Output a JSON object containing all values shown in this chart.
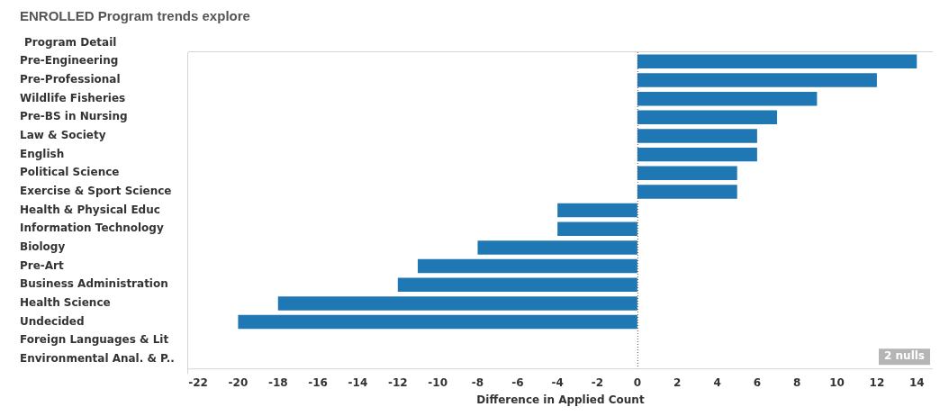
{
  "chart_data": {
    "type": "bar",
    "orientation": "horizontal",
    "title": "ENROLLED Program trends explore",
    "ylabel": "Program Detail",
    "xlabel": "Difference in Applied Count",
    "categories": [
      "Pre-Engineering",
      "Pre-Professional",
      "Wildlife Fisheries",
      "Pre-BS in Nursing",
      "Law & Society",
      "English",
      "Political Science",
      "Exercise & Sport Science",
      "Health & Physical Educ",
      "Information Technology",
      "Biology",
      "Pre-Art",
      "Business Administration",
      "Health Science",
      "Undecided",
      "Foreign Languages & Lit",
      "Environmental Anal. & P.."
    ],
    "values": [
      14,
      12,
      9,
      7,
      6,
      6,
      5,
      5,
      -4,
      -4,
      -8,
      -11,
      -12,
      -18,
      -20,
      null,
      null
    ],
    "color": "#1f77b4",
    "xlim": [
      -22.5,
      14.8
    ],
    "xticks": [
      -22,
      -20,
      -18,
      -16,
      -14,
      -12,
      -10,
      -8,
      -6,
      -4,
      -2,
      0,
      2,
      4,
      6,
      8,
      10,
      12,
      14
    ],
    "ref_lines": [
      {
        "axis": "x",
        "value": 0,
        "color": "#555555",
        "line_style": "dotted"
      }
    ],
    "annotations": [
      "2 nulls"
    ],
    "grid": false,
    "legend": false
  }
}
